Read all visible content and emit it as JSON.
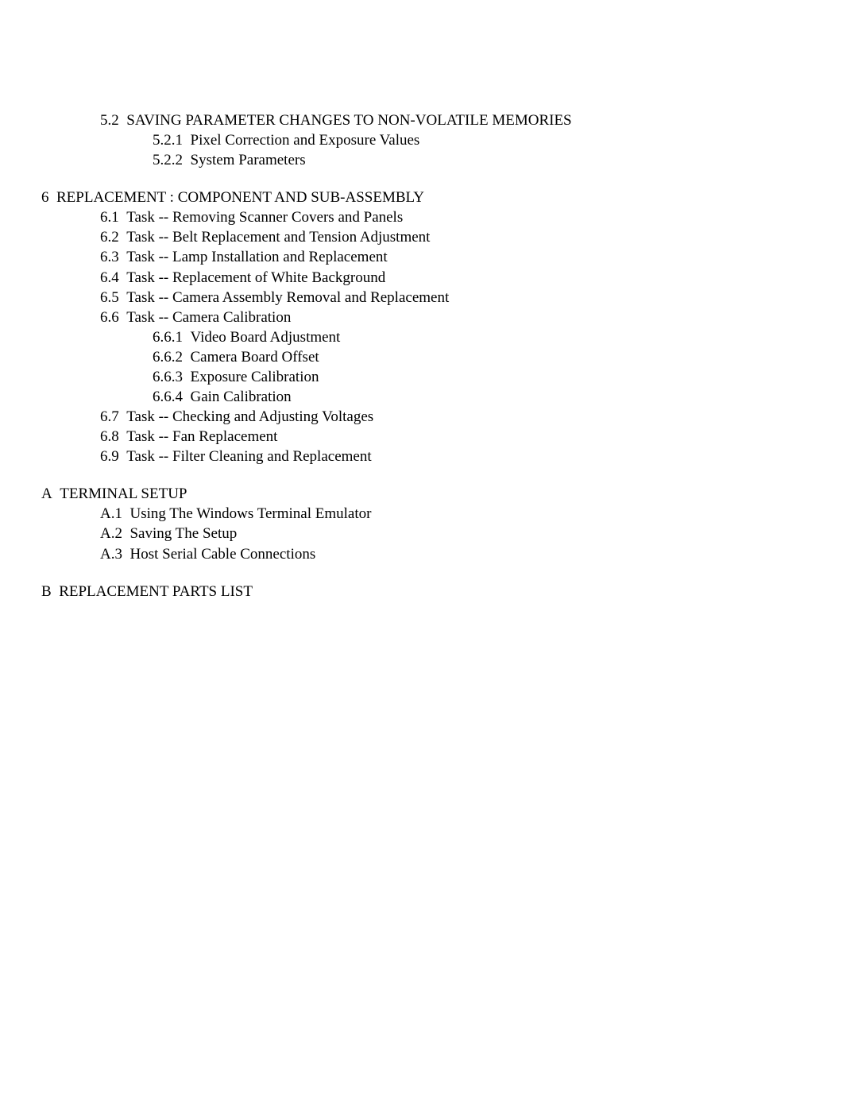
{
  "s52": {
    "num": "5.2",
    "title": "SAVING PARAMETER CHANGES TO NON-VOLATILE MEMORIES"
  },
  "s521": {
    "num": "5.2.1",
    "title": "Pixel Correction and Exposure Values"
  },
  "s522": {
    "num": "5.2.2",
    "title": "System Parameters"
  },
  "s6": {
    "num": "6",
    "title": "REPLACEMENT : COMPONENT AND SUB-ASSEMBLY"
  },
  "s61": {
    "num": "6.1",
    "title": "Task -- Removing Scanner Covers and Panels"
  },
  "s62": {
    "num": "6.2",
    "title": "Task -- Belt Replacement and Tension Adjustment"
  },
  "s63": {
    "num": "6.3",
    "title": "Task -- Lamp Installation and Replacement"
  },
  "s64": {
    "num": "6.4",
    "title": "Task -- Replacement of White Background"
  },
  "s65": {
    "num": "6.5",
    "title": "Task -- Camera Assembly Removal and Replacement"
  },
  "s66": {
    "num": "6.6",
    "title": "Task -- Camera Calibration"
  },
  "s661": {
    "num": "6.6.1",
    "title": "Video Board Adjustment"
  },
  "s662": {
    "num": "6.6.2",
    "title": "Camera Board Offset"
  },
  "s663": {
    "num": "6.6.3",
    "title": "Exposure Calibration"
  },
  "s664": {
    "num": "6.6.4",
    "title": "Gain Calibration"
  },
  "s67": {
    "num": "6.7",
    "title": "Task -- Checking and Adjusting Voltages"
  },
  "s68": {
    "num": "6.8",
    "title": "Task -- Fan Replacement"
  },
  "s69": {
    "num": "6.9",
    "title": "Task -- Filter Cleaning and Replacement"
  },
  "sA": {
    "num": "A",
    "title": "TERMINAL SETUP"
  },
  "sA1": {
    "num": "A.1",
    "title": "Using The Windows Terminal Emulator"
  },
  "sA2": {
    "num": "A.2",
    "title": "Saving The Setup"
  },
  "sA3": {
    "num": "A.3",
    "title": "Host Serial Cable Connections"
  },
  "sB": {
    "num": "B",
    "title": "REPLACEMENT PARTS LIST"
  }
}
